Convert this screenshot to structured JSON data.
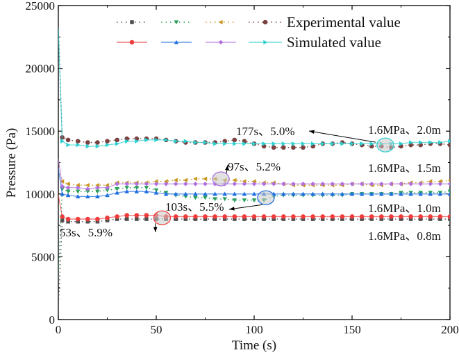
{
  "chart_data": {
    "type": "line",
    "title": "",
    "xlabel": "Time (s)",
    "ylabel": "Pressure (Pa)",
    "xlim": [
      0,
      200
    ],
    "ylim": [
      0,
      25000
    ],
    "xticks": [
      "0",
      "50",
      "100",
      "150",
      "200"
    ],
    "yticks": [
      "0",
      "5000",
      "10000",
      "15000",
      "20000",
      "25000"
    ],
    "grid": false,
    "legend": {
      "placement": "top-right",
      "rows": [
        {
          "label": "Experimental value",
          "series": [
            0,
            2,
            4,
            6
          ]
        },
        {
          "label": "Simulated value",
          "series": [
            1,
            3,
            5,
            7
          ]
        }
      ]
    },
    "x": [
      0,
      2,
      5,
      10,
      15,
      20,
      25,
      30,
      35,
      40,
      45,
      50,
      55,
      60,
      65,
      70,
      75,
      80,
      85,
      90,
      95,
      100,
      105,
      110,
      115,
      120,
      125,
      130,
      135,
      140,
      145,
      150,
      155,
      160,
      165,
      170,
      175,
      180,
      185,
      190,
      195,
      200
    ],
    "series": [
      {
        "name": "Experimental 1.6MPa 0.8m",
        "kind": "experimental",
        "marker": "square",
        "color": "#505050",
        "values": [
          1000,
          7900,
          7800,
          7800,
          7800,
          7800,
          7900,
          8000,
          8000,
          8000,
          8000,
          8000,
          8000,
          8000,
          8000,
          8000,
          8000,
          8000,
          8000,
          8000,
          8000,
          8000,
          8000,
          8000,
          8000,
          8000,
          8000,
          8000,
          8000,
          8000,
          8000,
          8000,
          8000,
          8000,
          8000,
          8000,
          8000,
          8000,
          8000,
          8000,
          8000,
          8000
        ]
      },
      {
        "name": "Simulated 1.6MPa 0.8m",
        "kind": "simulated",
        "marker": "circle",
        "color": "#f03c3c",
        "values": [
          9900,
          8200,
          8000,
          8000,
          8000,
          8000,
          8100,
          8200,
          8300,
          8300,
          8300,
          8300,
          8200,
          8200,
          8200,
          8200,
          8200,
          8200,
          8200,
          8200,
          8200,
          8200,
          8200,
          8200,
          8200,
          8200,
          8200,
          8200,
          8200,
          8200,
          8200,
          8200,
          8200,
          8200,
          8200,
          8200,
          8200,
          8200,
          8200,
          8200,
          8200,
          8200
        ]
      },
      {
        "name": "Experimental 1.6MPa 1.0m",
        "kind": "experimental",
        "marker": "triangle-down",
        "color": "#2aa05a",
        "values": [
          3400,
          10400,
          10200,
          10200,
          10200,
          10200,
          10300,
          10400,
          10500,
          10500,
          10500,
          10300,
          10100,
          9900,
          9800,
          9700,
          9700,
          9600,
          9600,
          9500,
          9500,
          9500,
          9500,
          9800,
          9900,
          9900,
          9900,
          9900,
          9900,
          9900,
          9900,
          10000,
          10000,
          10000,
          10000,
          10000,
          10100,
          10100,
          10100,
          10100,
          10100,
          10200
        ]
      },
      {
        "name": "Simulated 1.6MPa 1.0m",
        "kind": "simulated",
        "marker": "triangle-up",
        "color": "#1f6fe0",
        "values": [
          12000,
          10000,
          9900,
          9800,
          9800,
          9800,
          9900,
          10100,
          10200,
          10200,
          10200,
          10100,
          10000,
          10000,
          10000,
          10000,
          10000,
          10000,
          10000,
          10000,
          10000,
          10000,
          10000,
          10000,
          10000,
          10000,
          10000,
          10000,
          10000,
          10000,
          10000,
          10000,
          10000,
          10000,
          10000,
          10000,
          10000,
          10000,
          10000,
          10000,
          10000,
          10000
        ]
      },
      {
        "name": "Experimental 1.6MPa 1.5m",
        "kind": "experimental",
        "marker": "triangle-left",
        "color": "#c8961e",
        "values": [
          12500,
          11000,
          10800,
          10700,
          10700,
          10700,
          10700,
          10900,
          10900,
          10900,
          10900,
          11000,
          11000,
          11100,
          11100,
          11200,
          11200,
          11200,
          11100,
          11100,
          11000,
          11000,
          10900,
          10900,
          10800,
          10700,
          10700,
          10700,
          10700,
          10700,
          10700,
          10800,
          10800,
          10700,
          10700,
          10800,
          10800,
          10900,
          10900,
          11000,
          11000,
          11100
        ]
      },
      {
        "name": "Simulated 1.6MPa 1.5m",
        "kind": "simulated",
        "marker": "diamond",
        "color": "#b070e0",
        "values": [
          12800,
          10600,
          10500,
          10500,
          10400,
          10500,
          10500,
          10800,
          10800,
          10800,
          10800,
          10800,
          10800,
          10800,
          10800,
          10800,
          10800,
          10800,
          10800,
          10800,
          10800,
          10800,
          10800,
          10800,
          10800,
          10800,
          10800,
          10800,
          10800,
          10800,
          10800,
          10800,
          10800,
          10800,
          10800,
          10800,
          10800,
          10800,
          10800,
          10800,
          10800,
          10800
        ]
      },
      {
        "name": "Experimental 1.6MPa 2.0m",
        "kind": "experimental",
        "marker": "circle",
        "color": "#7b4040",
        "values": [
          23400,
          14500,
          14300,
          14200,
          14100,
          14100,
          14200,
          14300,
          14400,
          14400,
          14400,
          14400,
          14300,
          14200,
          14100,
          14100,
          14100,
          14100,
          14200,
          14300,
          14200,
          14000,
          13800,
          13700,
          13700,
          13700,
          13700,
          13800,
          14000,
          14000,
          14100,
          14000,
          13900,
          13800,
          13800,
          13700,
          13800,
          13900,
          13900,
          14000,
          14000,
          13900
        ]
      },
      {
        "name": "Simulated 1.6MPa 2.0m",
        "kind": "simulated",
        "marker": "triangle-right",
        "color": "#2ad0d0",
        "values": [
          23200,
          14200,
          13900,
          13900,
          13800,
          13800,
          13900,
          14000,
          14200,
          14200,
          14300,
          14300,
          14300,
          14200,
          14200,
          14100,
          14100,
          14000,
          14000,
          14000,
          14000,
          14000,
          14000,
          14000,
          14000,
          14000,
          14000,
          14000,
          14000,
          14000,
          14000,
          14000,
          14000,
          14000,
          14000,
          14000,
          14000,
          14100,
          14100,
          14100,
          14100,
          14200
        ]
      }
    ],
    "annotations": [
      {
        "text": "53s、5.9%",
        "highlight_t": 53,
        "highlight_value": 8100,
        "color": "#f03c3c"
      },
      {
        "text": "97s、5.2%",
        "highlight_t": 83,
        "highlight_value": 11200,
        "color": "#b070e0"
      },
      {
        "text": "103s、5.5%",
        "highlight_t": 106,
        "highlight_value": 9700,
        "color": "#1f6fe0"
      },
      {
        "text": "177s、5.0%",
        "highlight_t": 167,
        "highlight_value": 13900,
        "color": "#2ad0d0"
      }
    ],
    "condition_labels": [
      "1.6MPa、2.0m",
      "1.6MPa、1.5m",
      "1.6MPa、1.0m",
      "1.6MPa、0.8m"
    ]
  }
}
